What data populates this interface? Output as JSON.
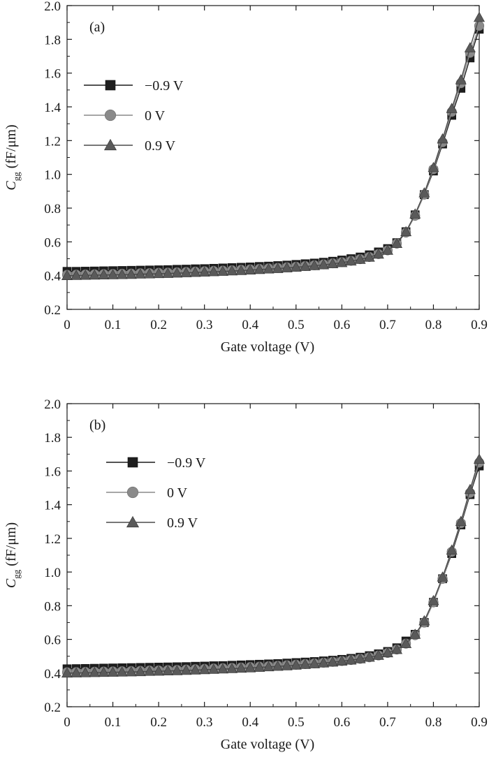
{
  "chart_data": [
    {
      "type": "line",
      "panel_label": "(a)",
      "xlabel": "Gate voltage (V)",
      "ylabel_main": "C",
      "ylabel_sub": "gg",
      "ylabel_unit": "(fF/μm)",
      "xlim": [
        0,
        0.9
      ],
      "ylim": [
        0.2,
        2.0
      ],
      "x_ticks": [
        "0",
        "0.1",
        "0.2",
        "0.3",
        "0.4",
        "0.5",
        "0.6",
        "0.7",
        "0.8",
        "0.9"
      ],
      "y_ticks": [
        "0.2",
        "0.4",
        "0.6",
        "0.8",
        "1.0",
        "1.2",
        "1.4",
        "1.6",
        "1.8",
        "2.0"
      ],
      "grid": false,
      "legend_position": "left",
      "x": [
        0,
        0.02,
        0.04,
        0.06,
        0.08,
        0.1,
        0.12,
        0.14,
        0.16,
        0.18,
        0.2,
        0.22,
        0.24,
        0.26,
        0.28,
        0.3,
        0.32,
        0.34,
        0.36,
        0.38,
        0.4,
        0.42,
        0.44,
        0.46,
        0.48,
        0.5,
        0.52,
        0.54,
        0.56,
        0.58,
        0.6,
        0.62,
        0.64,
        0.66,
        0.68,
        0.7,
        0.72,
        0.74,
        0.76,
        0.78,
        0.8,
        0.82,
        0.84,
        0.86,
        0.88,
        0.9
      ],
      "series": [
        {
          "name": "−0.9  V",
          "marker": "square",
          "color": "#1e1e1e",
          "values": [
            0.425,
            0.425,
            0.426,
            0.427,
            0.428,
            0.429,
            0.43,
            0.431,
            0.432,
            0.433,
            0.434,
            0.435,
            0.437,
            0.438,
            0.44,
            0.441,
            0.443,
            0.445,
            0.447,
            0.449,
            0.451,
            0.454,
            0.456,
            0.459,
            0.462,
            0.466,
            0.47,
            0.474,
            0.479,
            0.485,
            0.492,
            0.5,
            0.51,
            0.523,
            0.54,
            0.56,
            0.595,
            0.66,
            0.76,
            0.88,
            1.02,
            1.18,
            1.35,
            1.51,
            1.69,
            1.86
          ]
        },
        {
          "name": "0 V",
          "marker": "circle",
          "color": "#8a8a8a",
          "values": [
            0.405,
            0.406,
            0.407,
            0.408,
            0.409,
            0.41,
            0.411,
            0.412,
            0.414,
            0.415,
            0.417,
            0.418,
            0.42,
            0.422,
            0.424,
            0.426,
            0.428,
            0.43,
            0.432,
            0.435,
            0.437,
            0.44,
            0.443,
            0.446,
            0.45,
            0.453,
            0.457,
            0.462,
            0.467,
            0.473,
            0.48,
            0.488,
            0.498,
            0.511,
            0.528,
            0.55,
            0.59,
            0.655,
            0.755,
            0.88,
            1.03,
            1.19,
            1.37,
            1.54,
            1.72,
            1.88
          ]
        },
        {
          "name": "0.9  V",
          "marker": "triangle",
          "color": "#5a5a5a",
          "values": [
            0.4,
            0.401,
            0.402,
            0.403,
            0.404,
            0.405,
            0.406,
            0.407,
            0.409,
            0.41,
            0.412,
            0.413,
            0.415,
            0.417,
            0.419,
            0.421,
            0.423,
            0.425,
            0.428,
            0.43,
            0.433,
            0.436,
            0.439,
            0.442,
            0.446,
            0.45,
            0.454,
            0.459,
            0.464,
            0.47,
            0.477,
            0.486,
            0.496,
            0.509,
            0.527,
            0.55,
            0.59,
            0.66,
            0.765,
            0.89,
            1.04,
            1.21,
            1.39,
            1.56,
            1.75,
            1.93
          ]
        }
      ]
    },
    {
      "type": "line",
      "panel_label": "(b)",
      "xlabel": "Gate voltage (V)",
      "ylabel_main": "C",
      "ylabel_sub": "gg",
      "ylabel_unit": "(fF/μm)",
      "xlim": [
        0,
        0.9
      ],
      "ylim": [
        0.2,
        2.0
      ],
      "x_ticks": [
        "0",
        "0.1",
        "0.2",
        "0.3",
        "0.4",
        "0.5",
        "0.6",
        "0.7",
        "0.8",
        "0.9"
      ],
      "y_ticks": [
        "0.2",
        "0.4",
        "0.6",
        "0.8",
        "1.0",
        "1.2",
        "1.4",
        "1.6",
        "1.8",
        "2.0"
      ],
      "grid": false,
      "legend_position": "left",
      "x": [
        0,
        0.02,
        0.04,
        0.06,
        0.08,
        0.1,
        0.12,
        0.14,
        0.16,
        0.18,
        0.2,
        0.22,
        0.24,
        0.26,
        0.28,
        0.3,
        0.32,
        0.34,
        0.36,
        0.38,
        0.4,
        0.42,
        0.44,
        0.46,
        0.48,
        0.5,
        0.52,
        0.54,
        0.56,
        0.58,
        0.6,
        0.62,
        0.64,
        0.66,
        0.68,
        0.7,
        0.72,
        0.74,
        0.76,
        0.78,
        0.8,
        0.82,
        0.84,
        0.86,
        0.88,
        0.9
      ],
      "series": [
        {
          "name": "−0.9  V",
          "marker": "square",
          "color": "#1e1e1e",
          "values": [
            0.425,
            0.426,
            0.427,
            0.428,
            0.429,
            0.43,
            0.431,
            0.432,
            0.433,
            0.434,
            0.435,
            0.436,
            0.437,
            0.438,
            0.44,
            0.441,
            0.443,
            0.444,
            0.446,
            0.448,
            0.45,
            0.452,
            0.454,
            0.456,
            0.459,
            0.462,
            0.465,
            0.468,
            0.472,
            0.476,
            0.481,
            0.487,
            0.494,
            0.503,
            0.514,
            0.528,
            0.55,
            0.59,
            0.63,
            0.7,
            0.82,
            0.96,
            1.11,
            1.28,
            1.46,
            1.63
          ]
        },
        {
          "name": "0 V",
          "marker": "circle",
          "color": "#8a8a8a",
          "values": [
            0.405,
            0.406,
            0.407,
            0.408,
            0.409,
            0.41,
            0.411,
            0.412,
            0.413,
            0.415,
            0.416,
            0.418,
            0.419,
            0.421,
            0.423,
            0.425,
            0.427,
            0.429,
            0.431,
            0.433,
            0.436,
            0.438,
            0.441,
            0.444,
            0.447,
            0.45,
            0.454,
            0.458,
            0.462,
            0.467,
            0.472,
            0.478,
            0.485,
            0.494,
            0.505,
            0.52,
            0.54,
            0.575,
            0.625,
            0.7,
            0.82,
            0.96,
            1.12,
            1.29,
            1.47,
            1.65
          ]
        },
        {
          "name": "0.9  V",
          "marker": "triangle",
          "color": "#5a5a5a",
          "values": [
            0.4,
            0.401,
            0.402,
            0.403,
            0.404,
            0.405,
            0.406,
            0.407,
            0.408,
            0.41,
            0.411,
            0.413,
            0.414,
            0.416,
            0.418,
            0.42,
            0.422,
            0.424,
            0.426,
            0.429,
            0.431,
            0.434,
            0.437,
            0.44,
            0.443,
            0.447,
            0.451,
            0.455,
            0.46,
            0.465,
            0.471,
            0.477,
            0.485,
            0.494,
            0.505,
            0.52,
            0.54,
            0.575,
            0.63,
            0.71,
            0.83,
            0.97,
            1.13,
            1.3,
            1.49,
            1.67
          ]
        }
      ]
    }
  ]
}
